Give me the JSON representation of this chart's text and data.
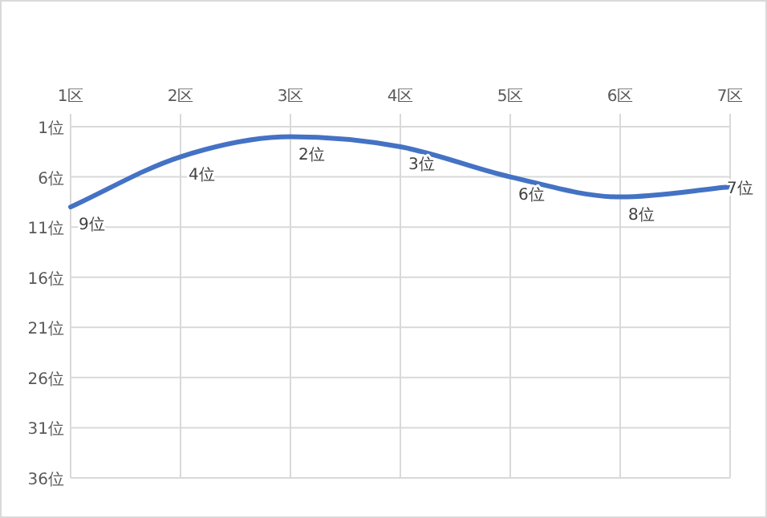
{
  "chart_data": {
    "type": "line",
    "categories": [
      "1区",
      "2区",
      "3区",
      "4区",
      "5区",
      "6区",
      "7区"
    ],
    "series": [
      {
        "color": "#4472c4",
        "values": [
          9,
          4,
          2,
          3,
          6,
          8,
          7
        ],
        "value_labels": [
          "9位",
          "4位",
          "2位",
          "3位",
          "6位",
          "8位",
          "7位"
        ]
      }
    ],
    "ylim": [
      36,
      1
    ],
    "yticks": [
      {
        "value": 1,
        "label": "1位"
      },
      {
        "value": 6,
        "label": "6位"
      },
      {
        "value": 11,
        "label": "11位"
      },
      {
        "value": 16,
        "label": "16位"
      },
      {
        "value": 21,
        "label": "21位"
      },
      {
        "value": 26,
        "label": "26位"
      },
      {
        "value": 31,
        "label": "31位"
      },
      {
        "value": 36,
        "label": "36位"
      }
    ],
    "grid": true,
    "marker": "none",
    "line_style": "solid"
  }
}
